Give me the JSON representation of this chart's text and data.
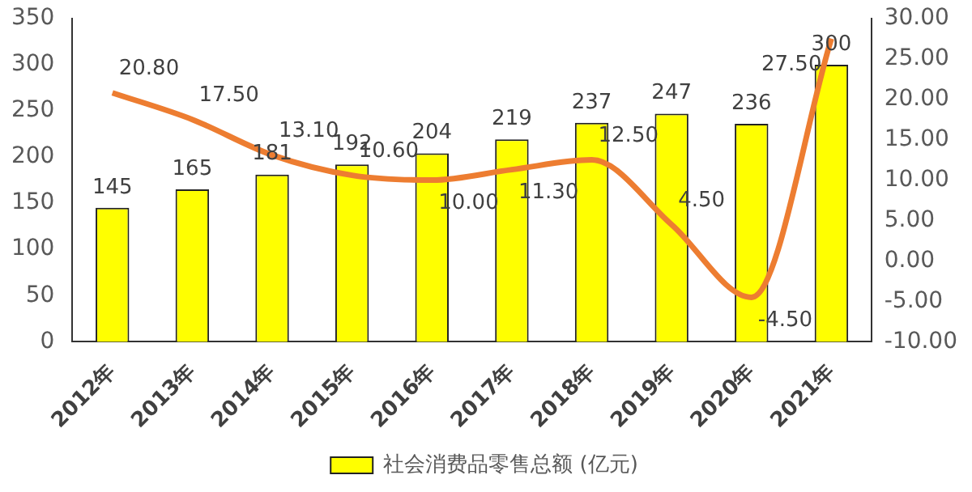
{
  "chart_data": {
    "type": "bar",
    "categories": [
      "2012年",
      "2013年",
      "2014年",
      "2015年",
      "2016年",
      "2017年",
      "2018年",
      "2019年",
      "2020年",
      "2021年"
    ],
    "series": [
      {
        "name": "社会消费品零售总额 (亿元)",
        "color": "#ffff00",
        "values": [
          145,
          165,
          181,
          192,
          204,
          219,
          237,
          247,
          236,
          300
        ],
        "value_labels": [
          "145",
          "165",
          "181",
          "192",
          "204",
          "219",
          "237",
          "247",
          "236",
          "300"
        ]
      },
      {
        "type": "line",
        "axis": "y2",
        "color": "#ed7d31",
        "values": [
          20.8,
          17.5,
          13.1,
          10.6,
          10.0,
          11.3,
          12.5,
          4.5,
          -4.5,
          27.5
        ],
        "value_labels": [
          "20.80",
          "17.50",
          "13.10",
          "10.60",
          "10.00",
          "11.30",
          "12.50",
          "4.50",
          "-4.50",
          "27.50"
        ]
      }
    ],
    "ylim": [
      0,
      350
    ],
    "yticks": [
      0,
      50,
      100,
      150,
      200,
      250,
      300,
      350
    ],
    "y2lim": [
      -10,
      30
    ],
    "y2ticks": [
      {
        "value": -10,
        "label": "-10.00"
      },
      {
        "value": -5,
        "label": "-5.00"
      },
      {
        "value": 0,
        "label": "0.00"
      },
      {
        "value": 5,
        "label": "5.00"
      },
      {
        "value": 10,
        "label": "10.00"
      },
      {
        "value": 15,
        "label": "15.00"
      },
      {
        "value": 20,
        "label": "20.00"
      },
      {
        "value": 25,
        "label": "25.00"
      },
      {
        "value": 30,
        "label": "30.00"
      }
    ],
    "grid": false,
    "legend": "bottom",
    "marker": "none"
  }
}
